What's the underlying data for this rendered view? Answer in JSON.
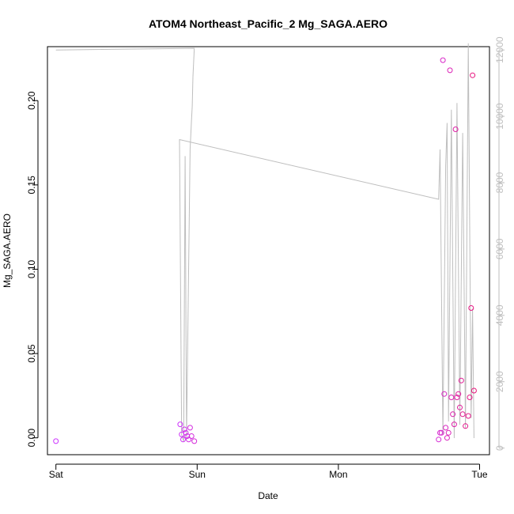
{
  "chart_data": {
    "type": "scatter",
    "title": "ATOM4 Northeast_Pacific_2 Mg_SAGA.AERO",
    "xlabel": "Date",
    "ylabel": "Mg_SAGA.AERO",
    "x_ticks": [
      {
        "label": "Sat",
        "day": 0
      },
      {
        "label": "Sun",
        "day": 1
      },
      {
        "label": "Mon",
        "day": 2
      },
      {
        "label": "Tue",
        "day": 3
      }
    ],
    "xlim_days": [
      -0.06,
      3.07
    ],
    "ylim": [
      -0.01,
      0.232
    ],
    "y_ticks": [
      0.0,
      0.05,
      0.1,
      0.15,
      0.2
    ],
    "y_tick_labels": [
      "0.00",
      "0.05",
      "0.10",
      "0.15",
      "0.20"
    ],
    "y2lim": [
      -200,
      12100
    ],
    "y2_ticks": [
      0,
      2000,
      4000,
      6000,
      8000,
      10000,
      12000
    ],
    "y2_tick_labels": [
      "0",
      "2000",
      "4000",
      "6000",
      "8000",
      "10000",
      "12000"
    ],
    "series": [
      {
        "role": "points",
        "color": "#e8137a",
        "color_start": "#cc33ff",
        "points": [
          [
            0.0,
            -0.002
          ],
          [
            0.88,
            0.008
          ],
          [
            0.89,
            0.002
          ],
          [
            0.9,
            -0.001
          ],
          [
            0.91,
            0.005
          ],
          [
            0.92,
            0.003
          ],
          [
            0.93,
            0.001
          ],
          [
            0.94,
            -0.001
          ],
          [
            0.95,
            0.006
          ],
          [
            0.96,
            0.001
          ],
          [
            0.98,
            -0.002
          ],
          [
            2.71,
            -0.001
          ],
          [
            2.72,
            0.003
          ],
          [
            2.73,
            0.003
          ],
          [
            2.74,
            0.224
          ],
          [
            2.75,
            0.026
          ],
          [
            2.76,
            0.006
          ],
          [
            2.77,
            0.0
          ],
          [
            2.78,
            0.003
          ],
          [
            2.79,
            0.218
          ],
          [
            2.8,
            0.024
          ],
          [
            2.81,
            0.014
          ],
          [
            2.82,
            0.008
          ],
          [
            2.83,
            0.183
          ],
          [
            2.84,
            0.024
          ],
          [
            2.85,
            0.026
          ],
          [
            2.86,
            0.018
          ],
          [
            2.87,
            0.034
          ],
          [
            2.88,
            0.014
          ],
          [
            2.9,
            0.007
          ],
          [
            2.92,
            0.013
          ],
          [
            2.93,
            0.024
          ],
          [
            2.94,
            0.077
          ],
          [
            2.95,
            0.215
          ],
          [
            2.96,
            0.028
          ]
        ]
      },
      {
        "role": "line",
        "color": "#bebebe",
        "axis": "right",
        "points": [
          [
            0.0,
            12000
          ],
          [
            0.98,
            12050
          ],
          [
            0.97,
            11200
          ],
          [
            0.965,
            10300
          ],
          [
            0.96,
            9900
          ],
          [
            0.95,
            9000
          ],
          [
            0.925,
            300
          ],
          [
            0.915,
            8800
          ],
          [
            0.905,
            200
          ],
          [
            0.89,
            400
          ],
          [
            0.875,
            9300
          ],
          [
            2.71,
            7500
          ],
          [
            2.72,
            9000
          ],
          [
            2.74,
            400
          ],
          [
            2.76,
            8500
          ],
          [
            2.77,
            9800
          ],
          [
            2.78,
            800
          ],
          [
            2.8,
            10200
          ],
          [
            2.82,
            300
          ],
          [
            2.84,
            10400
          ],
          [
            2.86,
            700
          ],
          [
            2.88,
            9500
          ],
          [
            2.9,
            600
          ],
          [
            2.92,
            12200
          ],
          [
            2.94,
            900
          ],
          [
            2.95,
            4200
          ],
          [
            2.96,
            300
          ]
        ]
      }
    ]
  }
}
